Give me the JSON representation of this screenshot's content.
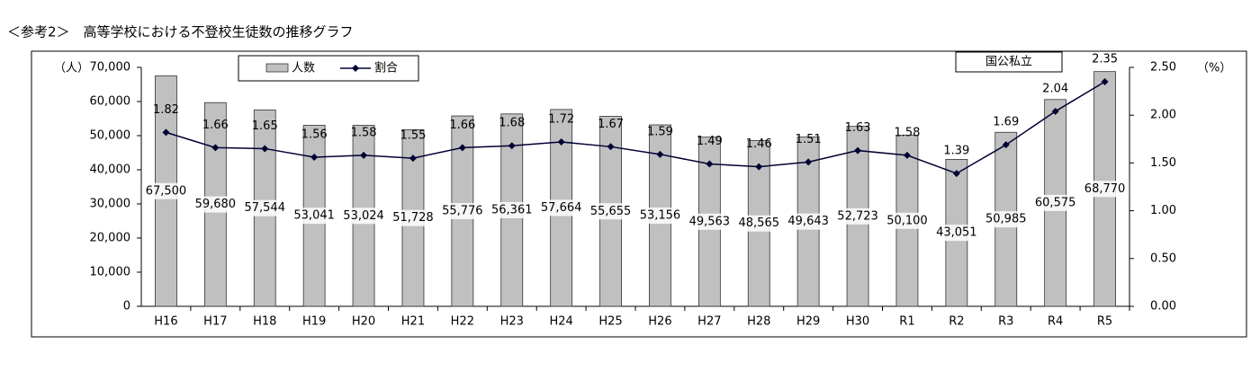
{
  "chart_data": {
    "type": "bar_line",
    "title": "＜参考2＞　高等学校における不登校生徒数の推移グラフ",
    "y_unit": "（人）",
    "y2_unit": "（%）",
    "box_label": "国公私立",
    "categories": [
      "H16",
      "H17",
      "H18",
      "H19",
      "H20",
      "H21",
      "H22",
      "H23",
      "H24",
      "H25",
      "H26",
      "H27",
      "H28",
      "H29",
      "H30",
      "R1",
      "R2",
      "R3",
      "R4",
      "R5"
    ],
    "series": [
      {
        "name": "人数",
        "color": "#c0c0c0",
        "values": [
          67500,
          59680,
          57544,
          53041,
          53024,
          51728,
          55776,
          56361,
          57664,
          55655,
          53156,
          49563,
          48565,
          49643,
          52723,
          50100,
          43051,
          50985,
          60575,
          68770
        ],
        "value_labels": [
          "67,500",
          "59,680",
          "57,544",
          "53,041",
          "53,024",
          "51,728",
          "55,776",
          "56,361",
          "57,664",
          "55,655",
          "53,156",
          "49,563",
          "48,565",
          "49,643",
          "52,723",
          "50,100",
          "43,051",
          "50,985",
          "60,575",
          "68,770"
        ]
      },
      {
        "name": "割合",
        "color": "#000033",
        "axis": "y2",
        "values": [
          1.82,
          1.66,
          1.65,
          1.56,
          1.58,
          1.55,
          1.66,
          1.68,
          1.72,
          1.67,
          1.59,
          1.49,
          1.46,
          1.51,
          1.63,
          1.58,
          1.39,
          1.69,
          2.04,
          2.35
        ]
      }
    ],
    "ylim": [
      0,
      70000
    ],
    "yticks": [
      0,
      {
        "value": 10000,
        "label": "10,000"
      },
      {
        "value": 20000,
        "label": "20,000"
      },
      {
        "value": 30000,
        "label": "30,000"
      },
      {
        "value": 40000,
        "label": "40,000"
      },
      {
        "value": 50000,
        "label": "50,000"
      },
      {
        "value": 60000,
        "label": "60,000"
      },
      {
        "value": 70000,
        "label": "70,000"
      }
    ],
    "y2lim": [
      0,
      2.5
    ],
    "y2ticks": [
      {
        "value": 0,
        "label": "0.00"
      },
      {
        "value": 0.5,
        "label": "0.50"
      },
      {
        "value": 1,
        "label": "1.00"
      },
      {
        "value": 1.5,
        "label": "1.50"
      },
      {
        "value": 2,
        "label": "2.00"
      },
      {
        "value": 2.5,
        "label": "2.50"
      }
    ]
  }
}
